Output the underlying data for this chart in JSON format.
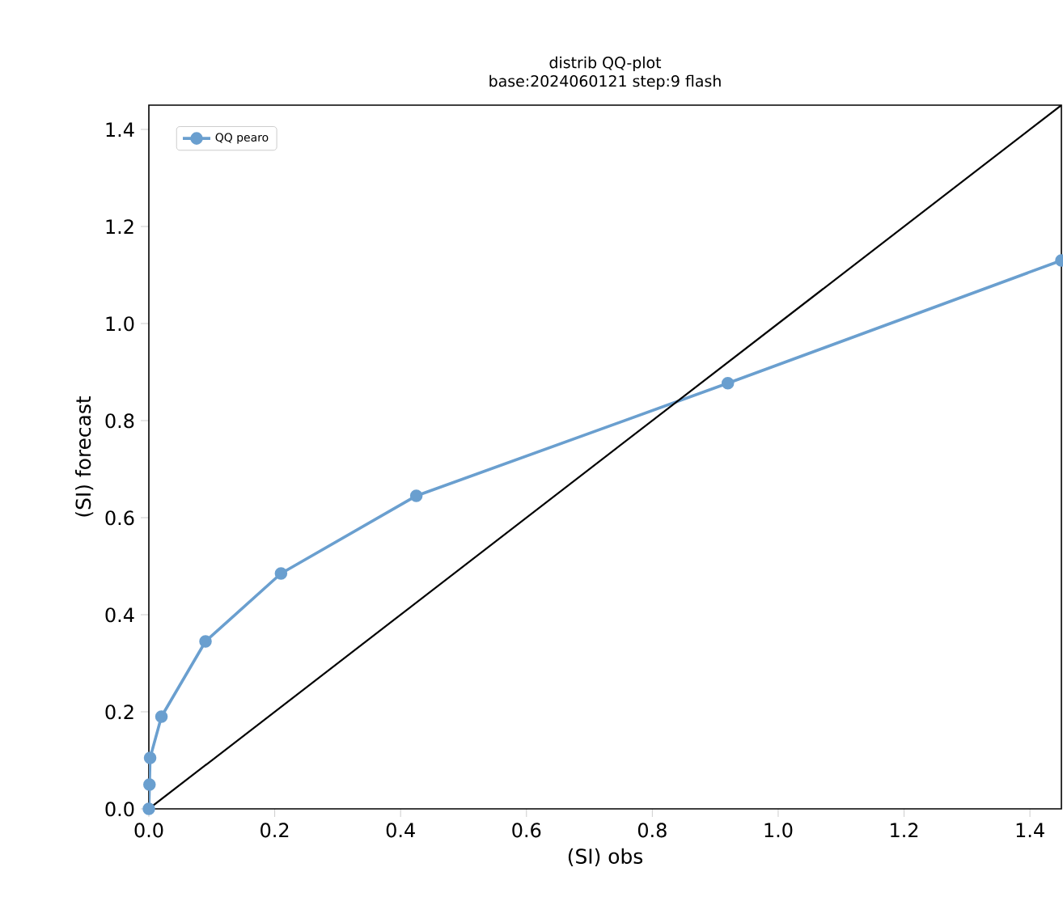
{
  "chart_data": {
    "type": "line",
    "title": "distrib QQ-plot",
    "subtitle": "base:2024060121 step:9 flash",
    "xlabel": "(SI) obs",
    "ylabel": "(SI) forecast",
    "xlim": [
      0,
      1.45
    ],
    "ylim": [
      0,
      1.45
    ],
    "xticks": [
      {
        "value": 0,
        "label": "0.0"
      },
      {
        "value": 0.2,
        "label": "0.2"
      },
      {
        "value": 0.4,
        "label": "0.4"
      },
      {
        "value": 0.6,
        "label": "0.6"
      },
      {
        "value": 0.8,
        "label": "0.8"
      },
      {
        "value": 1,
        "label": "1.0"
      },
      {
        "value": 1.2,
        "label": "1.2"
      },
      {
        "value": 1.4,
        "label": "1.4"
      }
    ],
    "yticks": [
      {
        "value": 0,
        "label": "0.0"
      },
      {
        "value": 0.2,
        "label": "0.2"
      },
      {
        "value": 0.4,
        "label": "0.4"
      },
      {
        "value": 0.6,
        "label": "0.6"
      },
      {
        "value": 0.8,
        "label": "0.8"
      },
      {
        "value": 1,
        "label": "1.0"
      },
      {
        "value": 1.2,
        "label": "1.2"
      },
      {
        "value": 1.4,
        "label": "1.4"
      }
    ],
    "series": [
      {
        "name": "QQ pearo",
        "color": "#6a9fcf",
        "marker": "circle",
        "x": [
          0,
          0.001,
          0.002,
          0.02,
          0.09,
          0.21,
          0.425,
          0.92,
          1.45
        ],
        "values": [
          0,
          0.05,
          0.105,
          0.19,
          0.345,
          0.485,
          0.645,
          0.877,
          1.13
        ]
      },
      {
        "color": "#000000",
        "marker": "none",
        "x": [
          0,
          1.45
        ],
        "values": [
          0,
          1.45
        ]
      }
    ],
    "legend": "top left",
    "grid": false,
    "line_style": "solid"
  }
}
